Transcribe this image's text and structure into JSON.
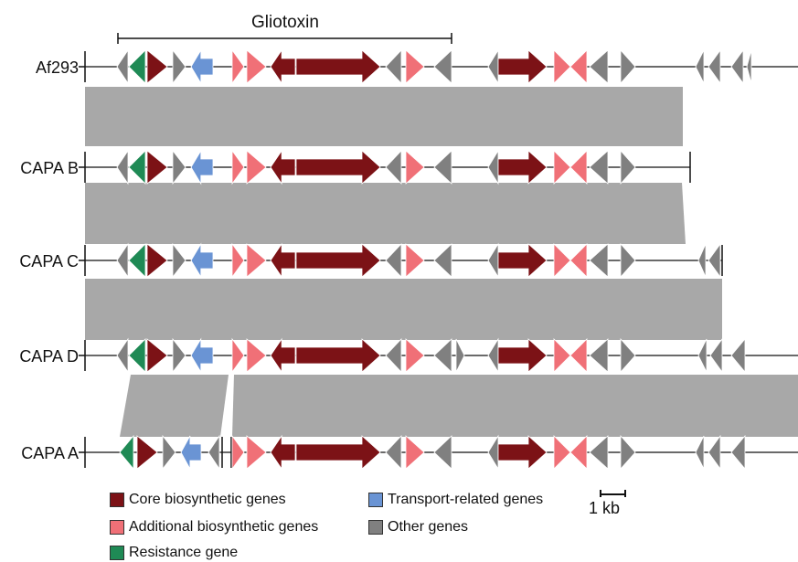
{
  "title": "Gliotoxin",
  "tracks": [
    {
      "label": "Af293"
    },
    {
      "label": "CAPA B"
    },
    {
      "label": "CAPA C"
    },
    {
      "label": "CAPA D"
    },
    {
      "label": "CAPA A"
    }
  ],
  "colors": {
    "core": "#7c1216",
    "additional": "#f07077",
    "resistance": "#1f8a55",
    "transport": "#6a94d4",
    "other": "#808080",
    "synteny": "#a8a8a8"
  },
  "legend": [
    {
      "label": "Core biosynthetic genes",
      "category": "core"
    },
    {
      "label": "Transport-related genes",
      "category": "transport"
    },
    {
      "label": "Additional biosynthetic genes",
      "category": "additional"
    },
    {
      "label": "Other genes",
      "category": "other"
    },
    {
      "label": "Resistance gene",
      "category": "resistance"
    }
  ],
  "scale_bar": {
    "label": "1 kb"
  }
}
